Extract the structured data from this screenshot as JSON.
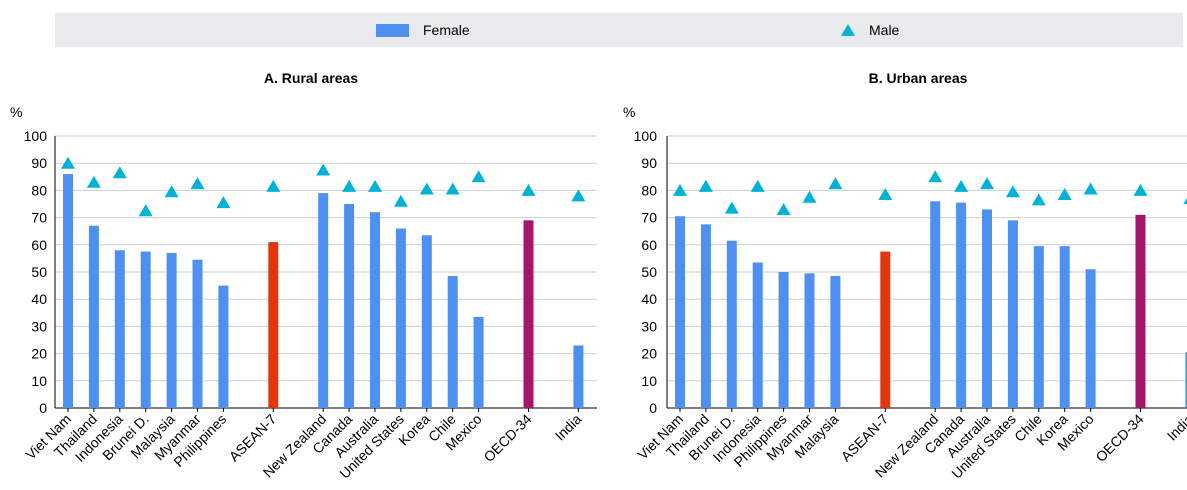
{
  "legend": {
    "female_label": "Female",
    "male_label": "Male"
  },
  "colors": {
    "female": "#4d90f0",
    "male": "#00b3d6",
    "asean": "#e3360c",
    "oecd": "#a4166c",
    "legend_bg": "#e9eaeb"
  },
  "chart_data": [
    {
      "type": "bar",
      "title": "A. Rural areas",
      "ylabel": "%",
      "ylim": [
        0,
        100
      ],
      "yticks": [
        0,
        10,
        20,
        30,
        40,
        50,
        60,
        70,
        80,
        90,
        100
      ],
      "groups": [
        [
          "Viet Nam",
          "Thailand",
          "Indonesia",
          "Brunei D.",
          "Malaysia",
          "Myanmar",
          "Philippines"
        ],
        [
          "ASEAN-7"
        ],
        [
          "New Zealand",
          "Canada",
          "Australia",
          "United States",
          "Korea",
          "Chile",
          "Mexico"
        ],
        [
          "OECD-34"
        ],
        [
          "India"
        ]
      ],
      "categories": [
        "Viet Nam",
        "Thailand",
        "Indonesia",
        "Brunei D.",
        "Malaysia",
        "Myanmar",
        "Philippines",
        "ASEAN-7",
        "New Zealand",
        "Canada",
        "Australia",
        "United States",
        "Korea",
        "Chile",
        "Mexico",
        "OECD-34",
        "India"
      ],
      "series": [
        {
          "name": "Female",
          "kind": "bar",
          "values": [
            86,
            67,
            58,
            57.5,
            57,
            54.5,
            45,
            61,
            79,
            75,
            72,
            66,
            63.5,
            48.5,
            33.5,
            69,
            23
          ]
        },
        {
          "name": "Male",
          "kind": "triangle",
          "values": [
            90,
            83,
            86.5,
            72.5,
            79.5,
            82.5,
            75.5,
            81.5,
            87.5,
            81.5,
            81.5,
            76,
            80.5,
            80.5,
            85,
            80,
            78
          ]
        }
      ],
      "highlight": {
        "ASEAN-7": "asean",
        "OECD-34": "oecd"
      }
    },
    {
      "type": "bar",
      "title": "B. Urban areas",
      "ylabel": "%",
      "ylim": [
        0,
        100
      ],
      "yticks": [
        0,
        10,
        20,
        30,
        40,
        50,
        60,
        70,
        80,
        90,
        100
      ],
      "groups": [
        [
          "Viet Nam",
          "Thailand",
          "Brunei D.",
          "Indonesia",
          "Philippines",
          "Myanmar",
          "Malaysia"
        ],
        [
          "ASEAN-7"
        ],
        [
          "New Zealand",
          "Canada",
          "Australia",
          "United States",
          "Chile",
          "Korea",
          "Mexico"
        ],
        [
          "OECD-34"
        ],
        [
          "India"
        ]
      ],
      "categories": [
        "Viet Nam",
        "Thailand",
        "Brunei D.",
        "Indonesia",
        "Philippines",
        "Myanmar",
        "Malaysia",
        "ASEAN-7",
        "New Zealand",
        "Canada",
        "Australia",
        "United States",
        "Chile",
        "Korea",
        "Mexico",
        "OECD-34",
        "India"
      ],
      "series": [
        {
          "name": "Female",
          "kind": "bar",
          "values": [
            70.5,
            67.5,
            61.5,
            53.5,
            50,
            49.5,
            48.5,
            57.5,
            76,
            75.5,
            73,
            69,
            59.5,
            59.5,
            51,
            71,
            20.5
          ]
        },
        {
          "name": "Male",
          "kind": "triangle",
          "values": [
            80,
            81.5,
            73.5,
            81.5,
            73,
            77.5,
            82.5,
            78.5,
            85,
            81.5,
            82.5,
            79.5,
            76.5,
            78.5,
            80.5,
            80,
            77
          ]
        }
      ],
      "highlight": {
        "ASEAN-7": "asean",
        "OECD-34": "oecd"
      }
    }
  ]
}
